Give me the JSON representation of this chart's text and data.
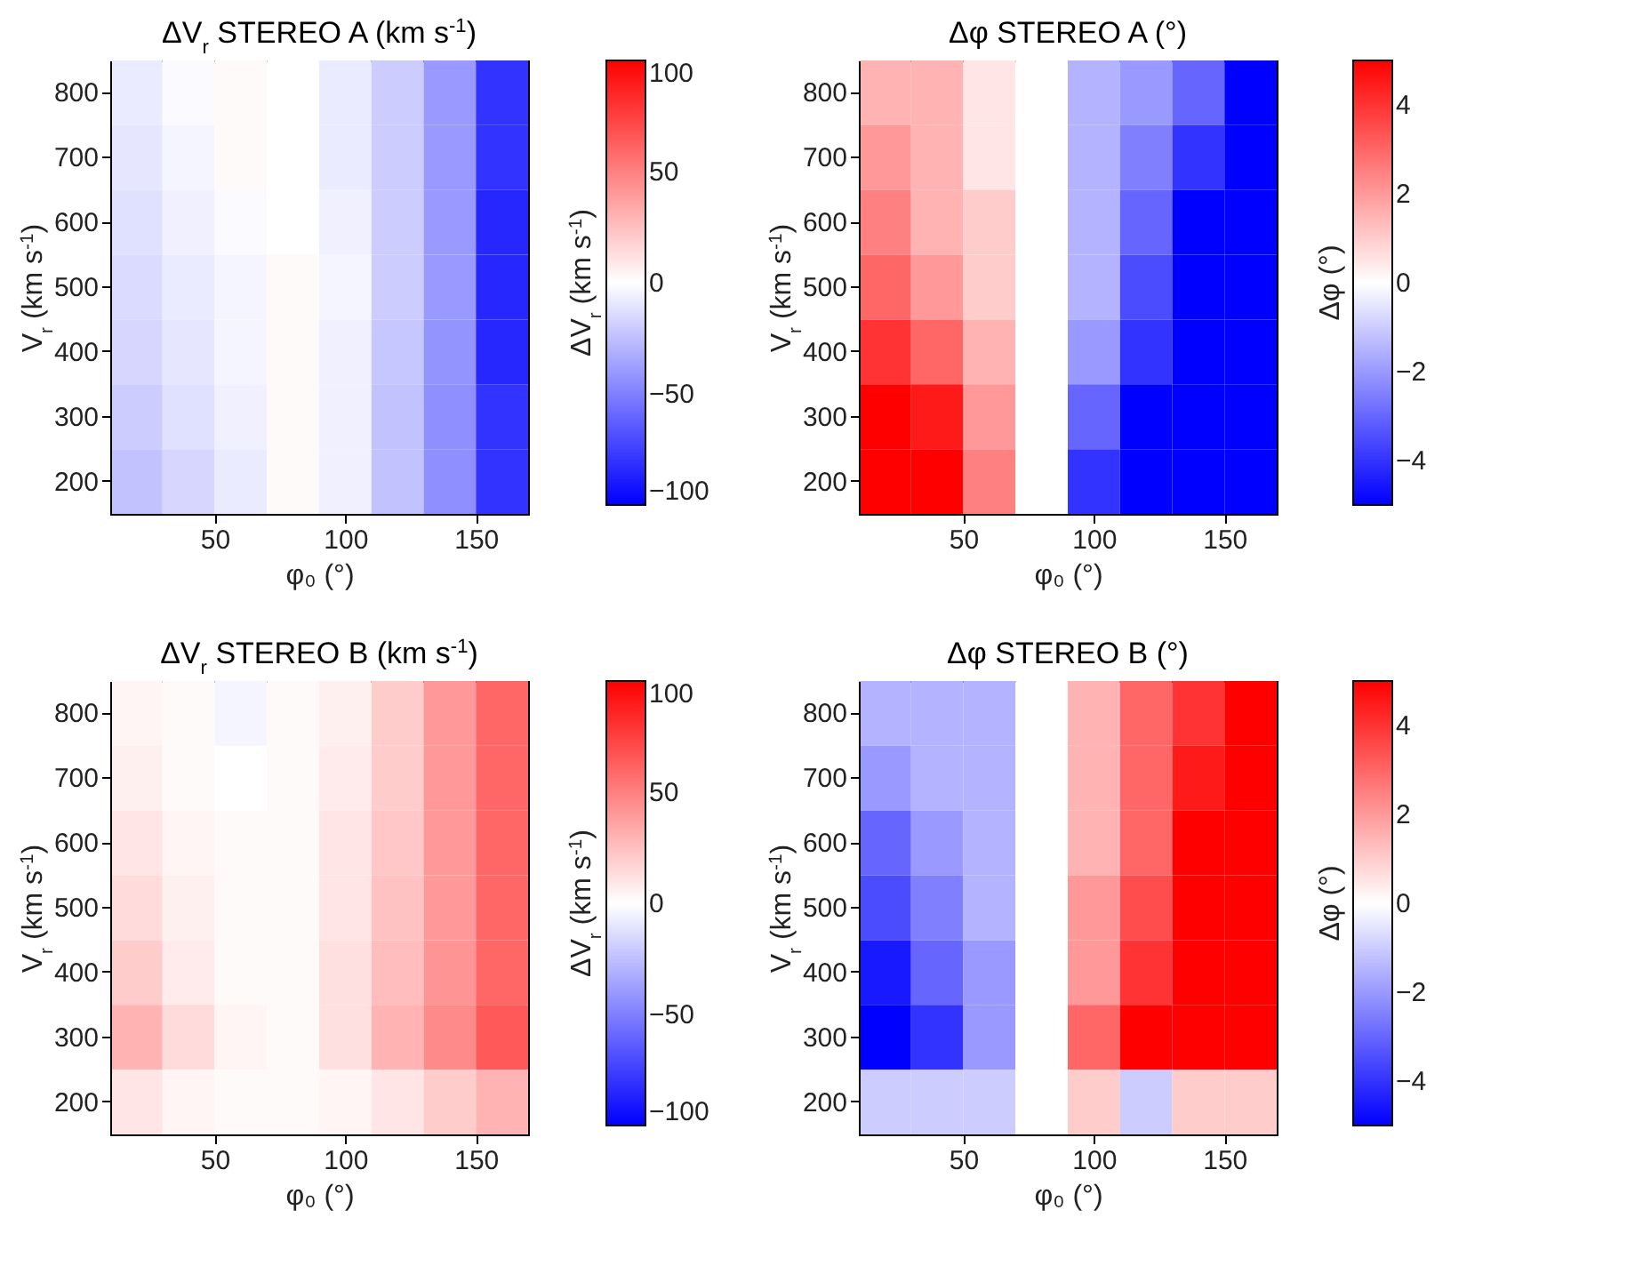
{
  "chart_data": [
    {
      "type": "heatmap",
      "title": "ΔV$_{r}$ STEREO A (km s$^{-1}$)",
      "xlabel": "φ₀ (°)",
      "ylabel": "V$_{r}$ (km s$^{-1}$)",
      "clabel": "ΔV$_{r}$ (km s$^{-1}$)",
      "x": [
        20,
        40,
        60,
        80,
        100,
        120,
        140,
        160
      ],
      "y_categories": [
        "800",
        "700",
        "600",
        "500",
        "400",
        "300",
        "200"
      ],
      "xlim": [
        10,
        170
      ],
      "xticks": [
        50,
        100,
        150
      ],
      "clim": [
        -100,
        100
      ],
      "cticks": [
        -100,
        -50,
        0,
        50,
        100
      ],
      "colors": [
        "#0000ff",
        "#ffffff",
        "#ff0000"
      ],
      "cells": [
        [
          -8,
          -2,
          2,
          0,
          -8,
          -20,
          -40,
          -80
        ],
        [
          -10,
          -4,
          2,
          0,
          -8,
          -20,
          -40,
          -80
        ],
        [
          -12,
          -6,
          -2,
          0,
          -6,
          -20,
          -40,
          -85
        ],
        [
          -14,
          -8,
          -4,
          2,
          -4,
          -20,
          -40,
          -85
        ],
        [
          -16,
          -10,
          -4,
          2,
          -6,
          -22,
          -42,
          -85
        ],
        [
          -20,
          -12,
          -6,
          2,
          -6,
          -24,
          -44,
          -80
        ],
        [
          -24,
          -16,
          -8,
          2,
          -6,
          -24,
          -44,
          -80
        ]
      ]
    },
    {
      "type": "heatmap",
      "title": "Δφ STEREO A (°)",
      "xlabel": "φ₀ (°)",
      "ylabel": "V$_{r}$ (km s$^{-1}$)",
      "clabel": "Δφ (°)",
      "x": [
        20,
        40,
        60,
        80,
        100,
        120,
        140,
        160
      ],
      "y_categories": [
        "800",
        "700",
        "600",
        "500",
        "400",
        "300",
        "200"
      ],
      "xlim": [
        10,
        170
      ],
      "xticks": [
        50,
        100,
        150
      ],
      "clim": [
        -5,
        5
      ],
      "cticks": [
        -4,
        -2,
        0,
        2,
        4
      ],
      "colors": [
        "#0000ff",
        "#ffffff",
        "#ff0000"
      ],
      "cells": [
        [
          1.5,
          1.5,
          0.5,
          0,
          -1.5,
          -2,
          -3,
          -5
        ],
        [
          2,
          1.5,
          0.5,
          0,
          -1.5,
          -2.5,
          -4,
          -5
        ],
        [
          2.5,
          1.5,
          1,
          0,
          -1.5,
          -3,
          -5,
          -5
        ],
        [
          3,
          2,
          1,
          0,
          -1.5,
          -3.5,
          -5,
          -5
        ],
        [
          4,
          3,
          1.5,
          0,
          -2,
          -4,
          -5,
          -5
        ],
        [
          5,
          4.5,
          2,
          0,
          -3,
          -5,
          -5,
          -5
        ],
        [
          5,
          5,
          2.5,
          0,
          -4,
          -5,
          -5,
          -5
        ]
      ]
    },
    {
      "type": "heatmap",
      "title": "ΔV$_{r}$ STEREO B (km s$^{-1}$)",
      "xlabel": "φ₀ (°)",
      "ylabel": "V$_{r}$ (km s$^{-1}$)",
      "clabel": "ΔV$_{r}$ (km s$^{-1}$)",
      "x": [
        20,
        40,
        60,
        80,
        100,
        120,
        140,
        160
      ],
      "y_categories": [
        "800",
        "700",
        "600",
        "500",
        "400",
        "300",
        "200"
      ],
      "xlim": [
        10,
        170
      ],
      "xticks": [
        50,
        100,
        150
      ],
      "clim": [
        -100,
        100
      ],
      "cticks": [
        -100,
        -50,
        0,
        50,
        100
      ],
      "colors": [
        "#0000ff",
        "#ffffff",
        "#ff0000"
      ],
      "cells": [
        [
          4,
          2,
          -4,
          2,
          6,
          20,
          40,
          60
        ],
        [
          6,
          2,
          0,
          2,
          8,
          20,
          40,
          60
        ],
        [
          10,
          4,
          2,
          2,
          10,
          22,
          40,
          60
        ],
        [
          14,
          6,
          2,
          2,
          10,
          24,
          40,
          60
        ],
        [
          20,
          8,
          2,
          2,
          12,
          26,
          42,
          60
        ],
        [
          30,
          14,
          4,
          2,
          12,
          30,
          46,
          65
        ],
        [
          10,
          4,
          2,
          2,
          4,
          10,
          20,
          30
        ]
      ]
    },
    {
      "type": "heatmap",
      "title": "Δφ STEREO B (°)",
      "xlabel": "φ₀ (°)",
      "ylabel": "V$_{r}$ (km s$^{-1}$)",
      "clabel": "Δφ (°)",
      "x": [
        20,
        40,
        60,
        80,
        100,
        120,
        140,
        160
      ],
      "y_categories": [
        "800",
        "700",
        "600",
        "500",
        "400",
        "300",
        "200"
      ],
      "xlim": [
        10,
        170
      ],
      "xticks": [
        50,
        100,
        150
      ],
      "clim": [
        -5,
        5
      ],
      "cticks": [
        -4,
        -2,
        0,
        2,
        4
      ],
      "colors": [
        "#0000ff",
        "#ffffff",
        "#ff0000"
      ],
      "cells": [
        [
          -1.5,
          -1.5,
          -1.5,
          0,
          1.5,
          3,
          4,
          5
        ],
        [
          -2,
          -1.5,
          -1.5,
          0,
          1.5,
          3,
          4.5,
          5
        ],
        [
          -3,
          -2,
          -1.5,
          0,
          1.5,
          3,
          5,
          5
        ],
        [
          -3.5,
          -2.5,
          -1.5,
          0,
          2,
          3.5,
          5,
          5
        ],
        [
          -4.5,
          -3,
          -2,
          0,
          2,
          4,
          5,
          5
        ],
        [
          -5,
          -4,
          -2,
          0,
          3,
          5,
          5,
          5
        ],
        [
          -1,
          -1,
          -1,
          0,
          1,
          -1,
          1,
          1
        ]
      ]
    }
  ]
}
